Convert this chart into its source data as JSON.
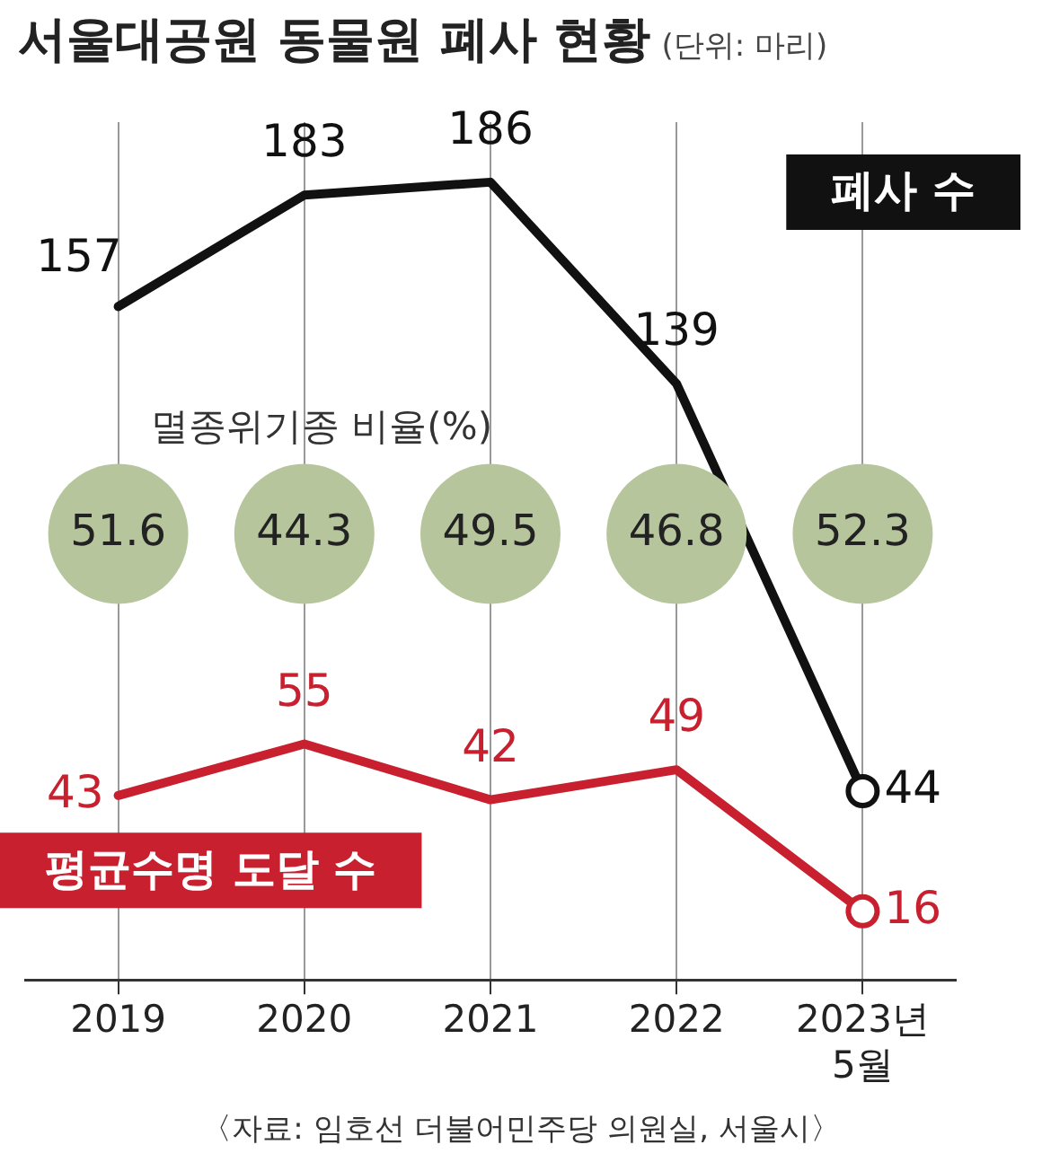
{
  "chart_data": {
    "type": "line",
    "title": "서울대공원 동물원 폐사 현황",
    "subtitle": "(단위: 마리)",
    "categories": [
      "2019",
      "2020",
      "2021",
      "2022",
      "2023년\n5월"
    ],
    "series": [
      {
        "name": "폐사 수",
        "color": "#111111",
        "values": [
          157,
          183,
          186,
          139,
          44
        ]
      },
      {
        "name": "평균수명 도달 수",
        "color": "#c8202f",
        "values": [
          43,
          55,
          42,
          49,
          16
        ]
      }
    ],
    "ylim": [
      0,
      200
    ],
    "tick_labels": "x",
    "grid": "x",
    "legend": false,
    "data_labels": true,
    "annotations": [
      "멸종위기종 비율(%)",
      "51.6",
      "44.3",
      "49.5",
      "46.8",
      "52.3",
      "〈자료: 임호선 더불어민주당 의원실, 서울시〉"
    ]
  }
}
